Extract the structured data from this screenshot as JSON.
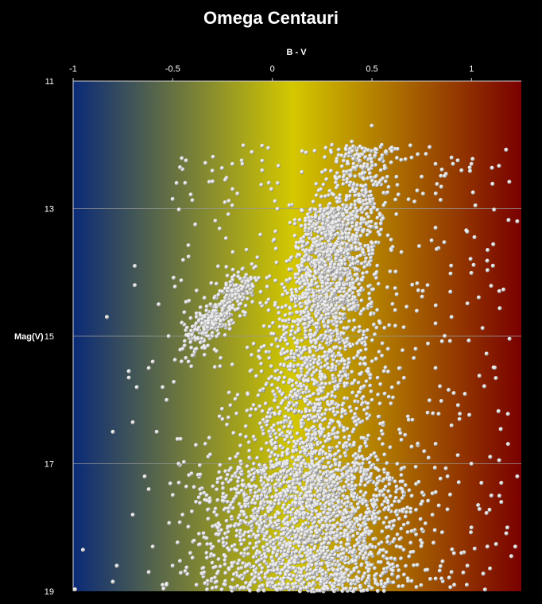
{
  "chart_data": {
    "type": "scatter",
    "title": "Omega Centauri",
    "xlabel": "B - V",
    "ylabel": "Mag(V)",
    "xlim": [
      -1,
      1.25
    ],
    "ylim": [
      11,
      19
    ],
    "y_inverted": true,
    "x_axis_position": "top",
    "x_ticks": [
      "-1",
      "-0.5",
      "0",
      "0.5",
      "1"
    ],
    "y_ticks": [
      "11",
      "13",
      "15",
      "17",
      "19"
    ],
    "grid": "horizontal",
    "background_gradient": [
      "#0a2a78",
      "#d4c800",
      "#7a0000"
    ],
    "marker_color": "#e8e8e8",
    "points": [
      [
        -0.95,
        18.35
      ],
      [
        -0.8,
        16.5
      ],
      [
        -0.83,
        14.7
      ],
      [
        -0.69,
        13.9
      ],
      [
        -0.69,
        14.2
      ],
      [
        -0.72,
        15.55
      ],
      [
        -0.72,
        15.65
      ],
      [
        -0.68,
        15.8
      ],
      [
        -0.7,
        16.35
      ],
      [
        -0.64,
        17.2
      ],
      [
        -0.62,
        17.4
      ],
      [
        -0.7,
        17.8
      ],
      [
        -0.78,
        18.6
      ],
      [
        -0.8,
        18.85
      ],
      [
        -0.99,
        18.97
      ],
      [
        -0.6,
        18.3
      ],
      [
        -0.62,
        18.7
      ],
      [
        -0.55,
        18.9
      ],
      [
        -0.58,
        16.5
      ],
      [
        -0.55,
        15.8
      ],
      [
        -0.57,
        14.5
      ],
      [
        -0.48,
        12.6
      ],
      [
        -0.5,
        12.85
      ],
      [
        -0.6,
        15.4
      ],
      [
        -0.62,
        15.5
      ],
      [
        -0.52,
        15.0
      ],
      [
        -0.45,
        15.2
      ],
      [
        -0.53,
        16.0
      ],
      [
        -0.47,
        17.0
      ],
      [
        -0.53,
        18.9
      ],
      [
        -0.5,
        18.6
      ],
      [
        -0.45,
        17.8
      ],
      [
        -0.38,
        18.9
      ],
      [
        -0.3,
        18.95
      ],
      [
        -0.2,
        18.95
      ],
      [
        -0.15,
        12.3
      ],
      [
        -0.2,
        12.3
      ],
      [
        -0.2,
        12.95
      ],
      [
        -0.05,
        12.4
      ],
      [
        -0.02,
        12.05
      ],
      [
        -0.05,
        12.25
      ],
      [
        0.15,
        12.1
      ],
      [
        0.3,
        12.0
      ],
      [
        0.4,
        11.95
      ],
      [
        0.5,
        11.7
      ],
      [
        0.55,
        12.0
      ],
      [
        0.6,
        12.1
      ],
      [
        0.7,
        12.2
      ],
      [
        0.75,
        12.5
      ],
      [
        0.82,
        12.3
      ],
      [
        0.9,
        12.2
      ],
      [
        0.95,
        12.4
      ],
      [
        1.0,
        12.3
      ],
      [
        1.02,
        12.95
      ],
      [
        1.23,
        13.2
      ],
      [
        0.8,
        13.5
      ],
      [
        0.82,
        13.3
      ],
      [
        0.78,
        14.2
      ],
      [
        0.82,
        14.8
      ],
      [
        0.9,
        14.7
      ],
      [
        0.72,
        15.2
      ],
      [
        0.82,
        15.5
      ],
      [
        0.78,
        16.2
      ],
      [
        0.9,
        16.4
      ],
      [
        0.94,
        16.3
      ],
      [
        0.88,
        17.2
      ],
      [
        1.0,
        17.0
      ],
      [
        1.05,
        17.3
      ],
      [
        1.1,
        17.5
      ],
      [
        1.15,
        17.3
      ],
      [
        1.15,
        17.6
      ],
      [
        1.23,
        17.2
      ],
      [
        1.18,
        18.0
      ],
      [
        1.22,
        18.3
      ],
      [
        1.2,
        18.45
      ],
      [
        1.08,
        18.3
      ],
      [
        1.0,
        18.0
      ],
      [
        0.95,
        18.4
      ],
      [
        0.9,
        18.7
      ],
      [
        0.85,
        18.8
      ],
      [
        0.98,
        18.6
      ],
      [
        -0.35,
        14.8
      ],
      [
        -0.33,
        14.6
      ],
      [
        -0.31,
        14.5
      ],
      [
        -0.29,
        14.4
      ],
      [
        -0.27,
        14.35
      ],
      [
        -0.25,
        14.3
      ],
      [
        -0.23,
        14.2
      ],
      [
        -0.21,
        14.15
      ],
      [
        -0.19,
        14.05
      ],
      [
        -0.17,
        14.0
      ],
      [
        -0.15,
        13.95
      ],
      [
        -0.34,
        14.9
      ],
      [
        -0.32,
        15.0
      ],
      [
        -0.36,
        15.1
      ],
      [
        -0.38,
        15.2
      ],
      [
        -0.4,
        15.3
      ],
      [
        -0.42,
        15.4
      ],
      [
        -0.3,
        14.7
      ],
      [
        -0.28,
        14.55
      ],
      [
        -0.26,
        14.5
      ],
      [
        -0.24,
        14.45
      ],
      [
        -0.38,
        14.7
      ],
      [
        -0.4,
        14.85
      ],
      [
        -0.42,
        15.0
      ],
      [
        -0.44,
        15.15
      ],
      [
        -0.2,
        14.3
      ],
      [
        -0.18,
        14.2
      ],
      [
        -0.16,
        14.1
      ],
      [
        -0.32,
        14.8
      ],
      [
        -0.3,
        14.95
      ],
      [
        -0.36,
        14.55
      ],
      [
        -0.34,
        14.4
      ],
      [
        -0.22,
        14.25
      ],
      [
        -0.25,
        14.6
      ],
      [
        -0.28,
        14.75
      ]
    ]
  }
}
